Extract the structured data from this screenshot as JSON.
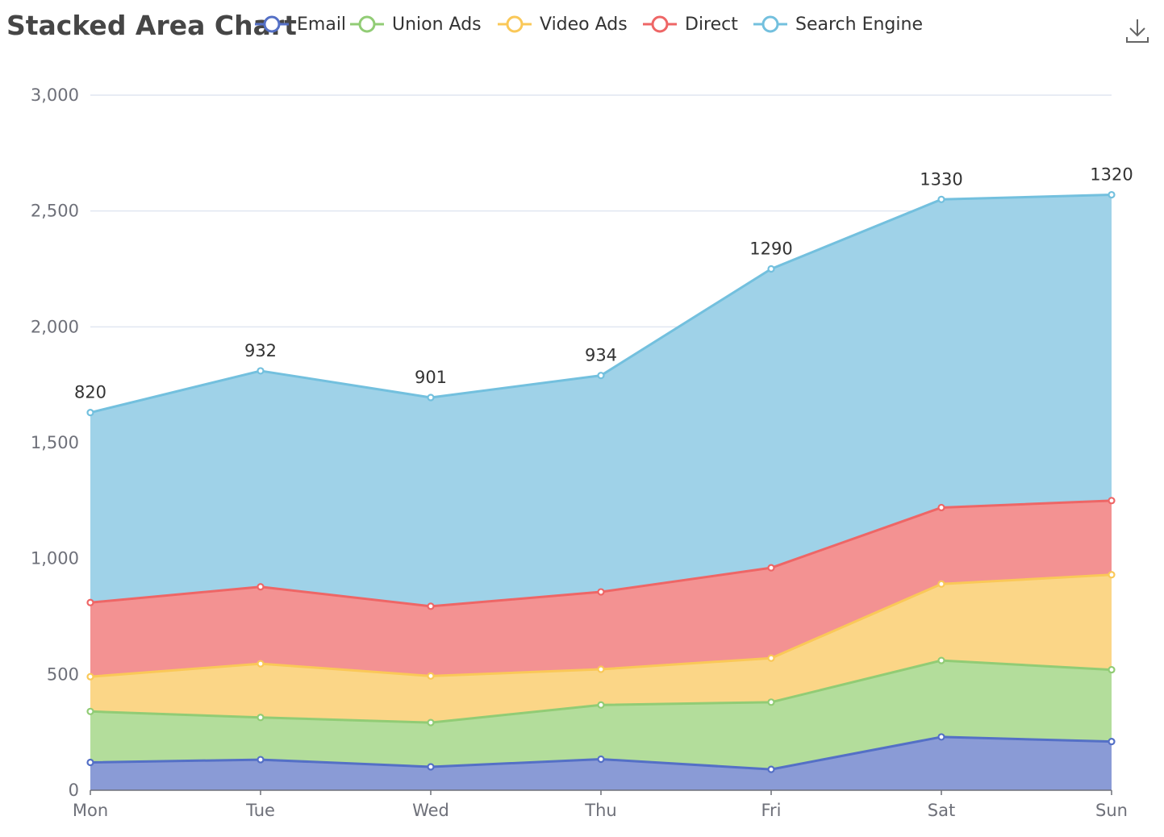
{
  "chart_data": {
    "type": "area",
    "stacked": true,
    "title": "Stacked Area Chart",
    "categories": [
      "Mon",
      "Tue",
      "Wed",
      "Thu",
      "Fri",
      "Sat",
      "Sun"
    ],
    "ylim": [
      0,
      3000
    ],
    "yticks": [
      0,
      500,
      1000,
      1500,
      2000,
      2500,
      3000
    ],
    "ytick_labels": [
      "0",
      "500",
      "1,000",
      "1,500",
      "2,000",
      "2,500",
      "3,000"
    ],
    "grid": true,
    "legend_position": "top",
    "series": [
      {
        "name": "Email",
        "values": [
          120,
          132,
          101,
          134,
          90,
          230,
          210
        ],
        "color": "#5470c6",
        "fill": "#8a9bd6"
      },
      {
        "name": "Union Ads",
        "values": [
          220,
          182,
          191,
          234,
          290,
          330,
          310
        ],
        "color": "#91cc75",
        "fill": "#b3dd9b"
      },
      {
        "name": "Video Ads",
        "values": [
          150,
          232,
          201,
          154,
          190,
          330,
          410
        ],
        "color": "#fac858",
        "fill": "#fbd687"
      },
      {
        "name": "Direct",
        "values": [
          320,
          332,
          301,
          334,
          390,
          330,
          320
        ],
        "color": "#ee6666",
        "fill": "#f39292"
      },
      {
        "name": "Search Engine",
        "values": [
          820,
          932,
          901,
          934,
          1290,
          1330,
          1320
        ],
        "color": "#73c0de",
        "fill": "#9fd2e8"
      }
    ],
    "data_labels_series": "Search Engine"
  }
}
